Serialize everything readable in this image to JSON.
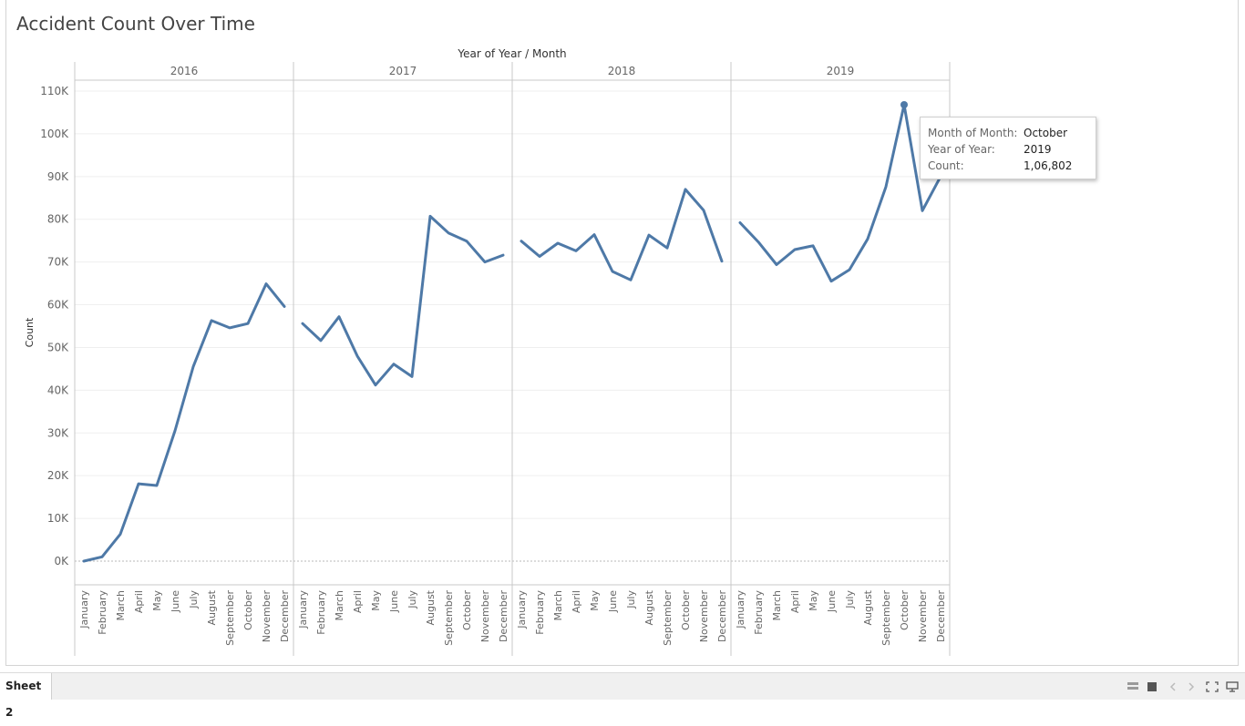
{
  "sheet": {
    "title": "Accident Count Over Time",
    "header_label": "Year of Year  /  Month",
    "y_axis_label": "Count"
  },
  "chart_data": {
    "type": "line",
    "title": "Accident Count Over Time",
    "xlabel": "Year of Year  /  Month",
    "ylabel": "Count",
    "ylim": [
      0,
      110000
    ],
    "y_ticks": [
      0,
      10000,
      20000,
      30000,
      40000,
      50000,
      60000,
      70000,
      80000,
      90000,
      100000,
      110000
    ],
    "y_tick_labels": [
      "0K",
      "10K",
      "20K",
      "30K",
      "40K",
      "50K",
      "60K",
      "70K",
      "80K",
      "90K",
      "100K",
      "110K"
    ],
    "grid": true,
    "color": "#4e79a7",
    "months": [
      "January",
      "February",
      "March",
      "April",
      "May",
      "June",
      "July",
      "August",
      "September",
      "October",
      "November",
      "December"
    ],
    "panels": [
      {
        "year": "2016",
        "values": [
          0,
          1000,
          6300,
          18100,
          17700,
          30500,
          45500,
          56300,
          54600,
          55600,
          64900,
          59600
        ]
      },
      {
        "year": "2017",
        "values": [
          55600,
          51600,
          57200,
          48000,
          41200,
          46100,
          43200,
          80700,
          76800,
          74900,
          70000,
          71600
        ]
      },
      {
        "year": "2018",
        "values": [
          74900,
          71300,
          74400,
          72600,
          76400,
          67800,
          65800,
          76300,
          73300,
          87000,
          82100,
          70200
        ]
      },
      {
        "year": "2019",
        "values": [
          79200,
          74700,
          69400,
          72900,
          73800,
          65500,
          68200,
          75400,
          87600,
          106802,
          82000,
          90000
        ]
      }
    ],
    "highlight": {
      "year": "2019",
      "month": "October",
      "value": 106802
    }
  },
  "tooltip": {
    "rows": [
      {
        "key": "Month of Month:",
        "value": "October"
      },
      {
        "key": "Year of Year:",
        "value": "2019"
      },
      {
        "key": "Count:",
        "value": "1,06,802"
      }
    ]
  },
  "footer": {
    "sheet_tab": "Sheet 2"
  }
}
